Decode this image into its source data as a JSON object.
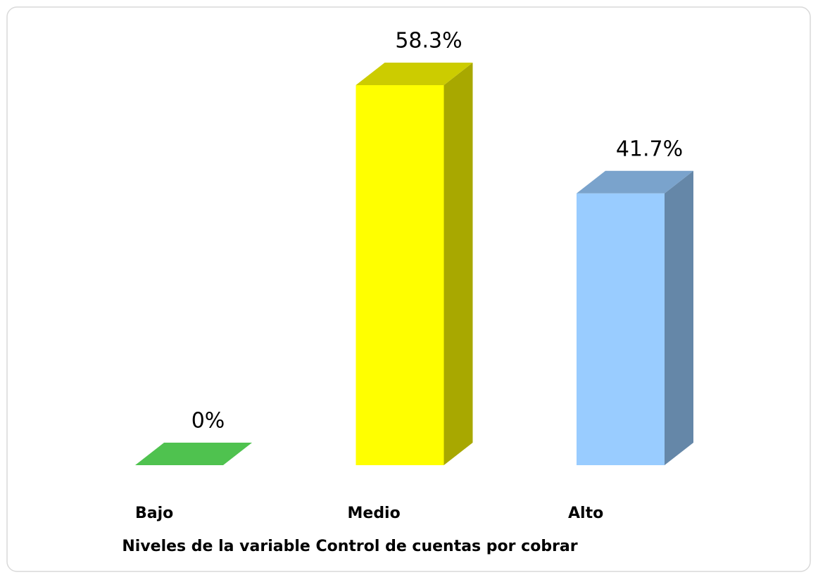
{
  "chart_data": {
    "type": "bar3d",
    "x_label": "Niveles de la variable Control de cuentas por cobrar",
    "categories": [
      "Bajo",
      "Medio",
      "Alto"
    ],
    "values": [
      0,
      58.3,
      41.7
    ],
    "value_labels": [
      "0%",
      "58.3%",
      "41.7%"
    ],
    "colors": [
      "#4fc24f",
      "#ffff00",
      "#99ccff"
    ]
  }
}
